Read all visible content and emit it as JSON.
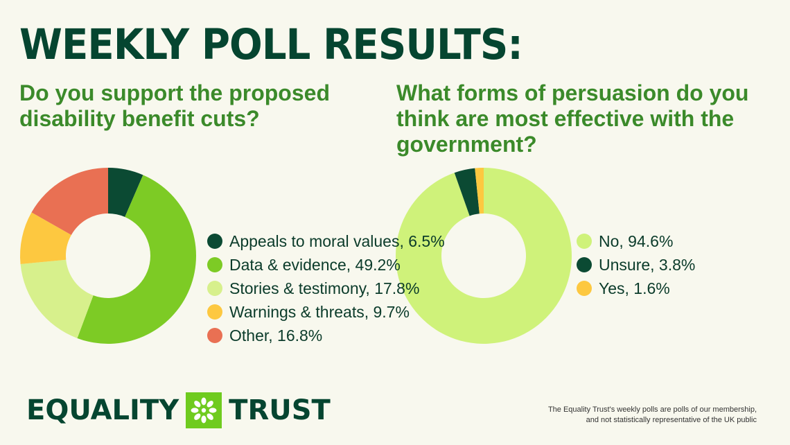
{
  "title": "WEEKLY POLL RESULTS:",
  "questions": {
    "q1": "Do you support the proposed disability benefit cuts?",
    "q2": "What forms of persuasion do you think are most effective with the government?"
  },
  "chart_data": [
    {
      "type": "pie",
      "variant": "donut",
      "categories": [
        "Appeals to moral values",
        "Data & evidence",
        "Stories & testimony",
        "Warnings & threats",
        "Other"
      ],
      "values": [
        6.5,
        49.2,
        17.8,
        9.7,
        16.8
      ],
      "value_unit": "%",
      "colors": [
        "#0b4a33",
        "#7dcb25",
        "#d7f08c",
        "#fdc840",
        "#e97053"
      ],
      "legend_labels": [
        "Appeals to moral values, 6.5%",
        "Data & evidence, 49.2%",
        "Stories & testimony, 17.8%",
        "Warnings & threats, 9.7%",
        "Other, 16.8%"
      ],
      "legend_position": "right"
    },
    {
      "type": "pie",
      "variant": "donut",
      "categories": [
        "No",
        "Unsure",
        "Yes"
      ],
      "values": [
        94.6,
        3.8,
        1.6
      ],
      "value_unit": "%",
      "colors": [
        "#cff27a",
        "#0b4a33",
        "#fdc840"
      ],
      "legend_labels": [
        "No, 94.6%",
        "Unsure, 3.8%",
        "Yes, 1.6%"
      ],
      "legend_position": "right"
    }
  ],
  "logo": {
    "left_word": "EQUALITY",
    "right_word": "TRUST",
    "mark_icon": "asterisk-flower-icon"
  },
  "footnote": {
    "line1": "The Equality Trust's weekly polls are polls of our membership,",
    "line2": "and not statistically representative of the UK public"
  }
}
